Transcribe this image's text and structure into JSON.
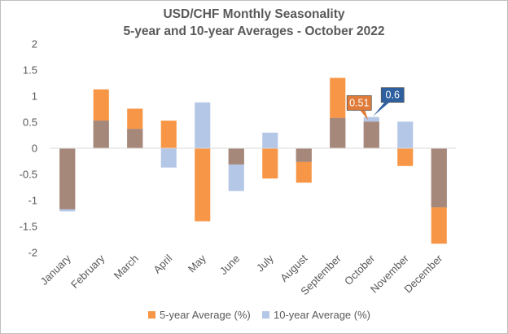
{
  "chart_data": {
    "type": "bar",
    "title_line1": "USD/CHF Monthly Seasonality",
    "title_line2": "5-year and 10-year Averages - October 2022",
    "xlabel": "",
    "ylabel": "",
    "ylim": [
      -2,
      2
    ],
    "yticks": [
      "2",
      "1.5",
      "1",
      "0.5",
      "0",
      "-0.5",
      "-1",
      "-1.5",
      "-2"
    ],
    "ytick_values": [
      2,
      1.5,
      1,
      0.5,
      0,
      -0.5,
      -1,
      -1.5,
      -2
    ],
    "categories": [
      "January",
      "February",
      "March",
      "April",
      "May",
      "June",
      "July",
      "August",
      "September",
      "October",
      "November",
      "December"
    ],
    "series": [
      {
        "name": "5-year Average (%)",
        "color": "#f79646",
        "values": [
          -1.17,
          1.13,
          0.76,
          0.53,
          -1.4,
          -0.31,
          -0.58,
          -0.66,
          1.35,
          0.51,
          -0.34,
          -1.83
        ]
      },
      {
        "name": "10-year Average (%)",
        "color": "#b4c7e7",
        "values": [
          -1.21,
          0.53,
          0.37,
          -0.37,
          0.88,
          -0.82,
          0.3,
          -0.26,
          0.58,
          0.6,
          0.51,
          -1.13
        ]
      }
    ],
    "overlap_color": "#a6887a",
    "callouts": [
      {
        "label": "0.51",
        "color": "#e07b39"
      },
      {
        "label": "0.6",
        "color": "#2e5f9e"
      }
    ],
    "grid": false,
    "legend": "bottom-center"
  }
}
